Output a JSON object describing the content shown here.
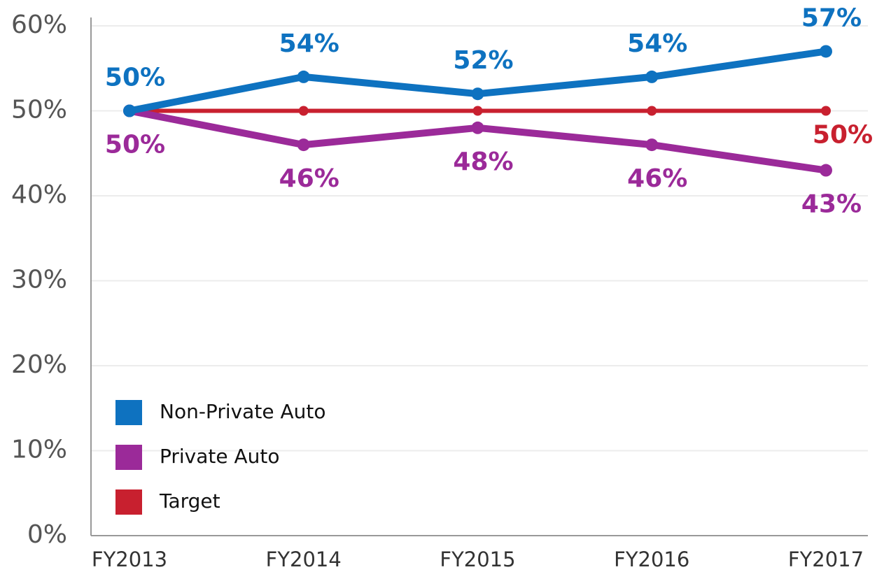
{
  "chart_data": {
    "type": "line",
    "categories": [
      "FY2013",
      "FY2014",
      "FY2015",
      "FY2016",
      "FY2017"
    ],
    "series": [
      {
        "name": "Non-Private Auto",
        "color": "#0e72c0",
        "values": [
          50,
          54,
          52,
          54,
          57
        ],
        "value_labels": [
          "50%",
          "54%",
          "52%",
          "54%",
          "57%"
        ],
        "label_position": "above"
      },
      {
        "name": "Private Auto",
        "color": "#9b2a99",
        "values": [
          50,
          46,
          48,
          46,
          43
        ],
        "value_labels": [
          "50%",
          "46%",
          "48%",
          "46%",
          "43%"
        ],
        "label_position": "below"
      },
      {
        "name": "Target",
        "color": "#c8202f",
        "values": [
          50,
          50,
          50,
          50,
          50
        ],
        "value_labels": [
          null,
          null,
          null,
          null,
          "50%"
        ],
        "label_position": "below"
      }
    ],
    "ylim": [
      0,
      60
    ],
    "yticks": [
      {
        "value": 0,
        "label": "0%"
      },
      {
        "value": 10,
        "label": "10%"
      },
      {
        "value": 20,
        "label": "20%"
      },
      {
        "value": 30,
        "label": "30%"
      },
      {
        "value": 40,
        "label": "40%"
      },
      {
        "value": 50,
        "label": "50%"
      },
      {
        "value": 60,
        "label": "60%"
      }
    ],
    "grid": true,
    "legend": "lower left"
  }
}
